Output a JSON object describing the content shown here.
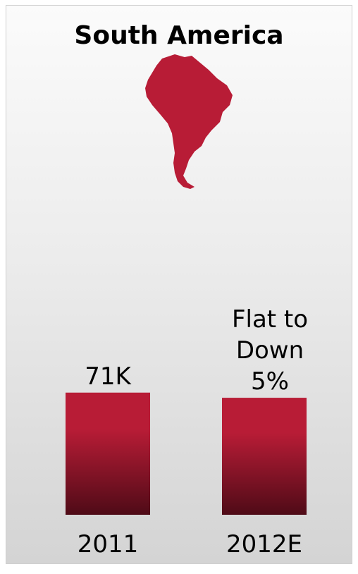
{
  "colors": {
    "bar_top": "#b81c36",
    "bar_bottom": "#4f0b17",
    "map_fill": "#b81c36"
  },
  "chart_data": {
    "type": "bar",
    "title": "South America",
    "icon": "south-america-map-icon",
    "categories": [
      "2011",
      "2012E"
    ],
    "values": [
      71,
      68
    ],
    "unit": "K",
    "data_labels": [
      [
        "71K"
      ],
      [
        "Flat to",
        "Down",
        "5%"
      ]
    ],
    "ylim": [
      0,
      100
    ],
    "grid": false,
    "legend": "none"
  }
}
